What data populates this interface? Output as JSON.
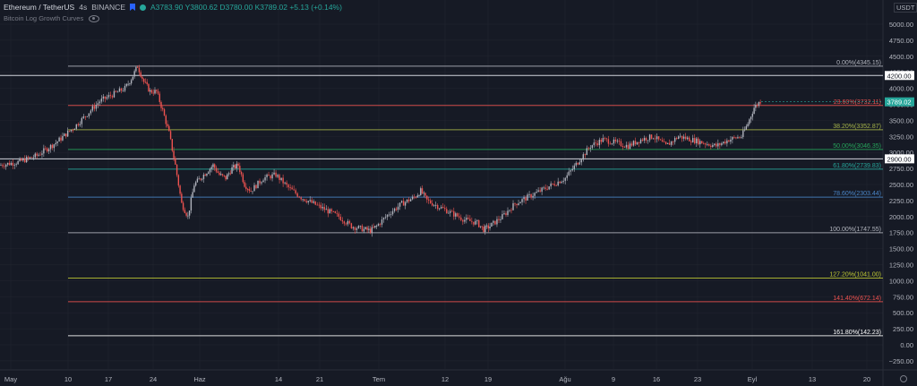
{
  "header": {
    "symbol": "Ethereum / TetherUS",
    "interval": "4s",
    "exchange": "BINANCE",
    "ohlc": "A3783.90  Y3800.62  D3780.00  K3789.02  +5.13 (+0.14%)"
  },
  "indicator": {
    "name": "Bitcoin Log Growth Curves"
  },
  "price_axis": {
    "currency": "USDT",
    "labels": [
      "5000.00",
      "4750.00",
      "4500.00",
      "4250.00",
      "4000.00",
      "3750.00",
      "3500.00",
      "3250.00",
      "3000.00",
      "2750.00",
      "2500.00",
      "2250.00",
      "2000.00",
      "1750.00",
      "1500.00",
      "1250.00",
      "1000.00",
      "750.00",
      "500.00",
      "250.00",
      "0.00",
      "−250.00"
    ],
    "current_price": "3789.02",
    "h_lines": [
      {
        "label": "4200.00"
      },
      {
        "label": "2900.00"
      }
    ]
  },
  "time_axis": {
    "labels": [
      "May",
      "10",
      "17",
      "24",
      "Haz",
      "14",
      "21",
      "Tem",
      "12",
      "19",
      "Ağu",
      "9",
      "16",
      "23",
      "Eyl",
      "13",
      "20"
    ]
  },
  "colors": {
    "background": "#161a25",
    "grid": "#232631",
    "candle_up": "#b0b3bd",
    "candle_down": "#ef5350",
    "accent": "#26a69a"
  },
  "chart_data": {
    "type": "candlestick",
    "title": "Ethereum / TetherUS",
    "xlabel": "",
    "ylabel": "",
    "ylim": [
      -420,
      5300
    ],
    "fib_levels": [
      {
        "label": "0.00%(4345.15)",
        "value": 4345.15,
        "color": "#b2b5be"
      },
      {
        "label": "23.60%(3732.11)",
        "value": 3732.11,
        "color": "#ef5350"
      },
      {
        "label": "38.20%(3352.87)",
        "value": 3352.87,
        "color": "#a7b54a"
      },
      {
        "label": "50.00%(3046.35)",
        "value": 3046.35,
        "color": "#26a65b"
      },
      {
        "label": "61.80%(2739.83)",
        "value": 2739.83,
        "color": "#26a69a"
      },
      {
        "label": "78.60%(2303.44)",
        "value": 2303.44,
        "color": "#4a86c8"
      },
      {
        "label": "100.00%(1747.55)",
        "value": 1747.55,
        "color": "#b2b5be"
      },
      {
        "label": "127.20%(1041.00)",
        "value": 1041.0,
        "color": "#c0ca33"
      },
      {
        "label": "141.40%(672.14)",
        "value": 672.14,
        "color": "#ef5350"
      },
      {
        "label": "161.80%(142.23)",
        "value": 142.23,
        "color": "#ffffff"
      }
    ],
    "price_path": [
      [
        0,
        2800
      ],
      [
        3,
        2850
      ],
      [
        6,
        2950
      ],
      [
        9,
        3150
      ],
      [
        12,
        3400
      ],
      [
        14,
        3600
      ],
      [
        16,
        3800
      ],
      [
        18,
        3900
      ],
      [
        20,
        4000
      ],
      [
        21,
        4150
      ],
      [
        22,
        4345
      ],
      [
        23,
        4100
      ],
      [
        24,
        3950
      ],
      [
        25,
        3950
      ],
      [
        26,
        3650
      ],
      [
        27,
        3300
      ],
      [
        28,
        2800
      ],
      [
        29,
        2200
      ],
      [
        30,
        2000
      ],
      [
        31,
        2500
      ],
      [
        32,
        2600
      ],
      [
        33,
        2700
      ],
      [
        34,
        2800
      ],
      [
        35,
        2650
      ],
      [
        36,
        2600
      ],
      [
        37,
        2750
      ],
      [
        38,
        2800
      ],
      [
        39,
        2500
      ],
      [
        40,
        2400
      ],
      [
        42,
        2600
      ],
      [
        44,
        2650
      ],
      [
        46,
        2450
      ],
      [
        48,
        2300
      ],
      [
        50,
        2200
      ],
      [
        52,
        2100
      ],
      [
        54,
        2000
      ],
      [
        56,
        1850
      ],
      [
        58,
        1800
      ],
      [
        59,
        1780
      ],
      [
        60,
        1850
      ],
      [
        62,
        2050
      ],
      [
        64,
        2200
      ],
      [
        66,
        2300
      ],
      [
        67,
        2400
      ],
      [
        68,
        2250
      ],
      [
        70,
        2150
      ],
      [
        72,
        2050
      ],
      [
        74,
        1950
      ],
      [
        76,
        1900
      ],
      [
        77,
        1800
      ],
      [
        78,
        1850
      ],
      [
        80,
        2000
      ],
      [
        82,
        2200
      ],
      [
        84,
        2300
      ],
      [
        86,
        2400
      ],
      [
        88,
        2500
      ],
      [
        90,
        2600
      ],
      [
        92,
        2850
      ],
      [
        94,
        3100
      ],
      [
        96,
        3200
      ],
      [
        98,
        3150
      ],
      [
        100,
        3100
      ],
      [
        102,
        3200
      ],
      [
        104,
        3250
      ],
      [
        106,
        3100
      ],
      [
        108,
        3250
      ],
      [
        110,
        3200
      ],
      [
        112,
        3150
      ],
      [
        114,
        3100
      ],
      [
        116,
        3200
      ],
      [
        118,
        3250
      ],
      [
        119,
        3450
      ],
      [
        120,
        3700
      ],
      [
        121,
        3800
      ]
    ]
  }
}
